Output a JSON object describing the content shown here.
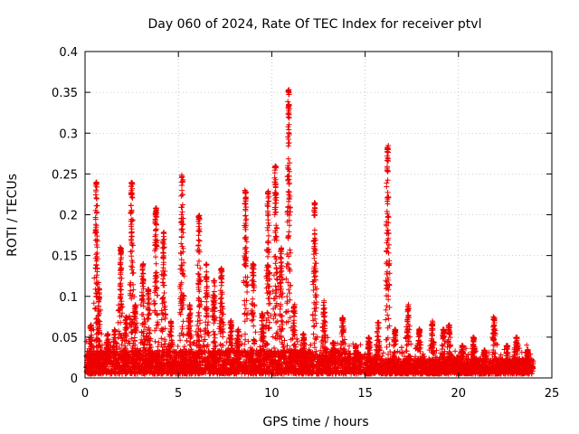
{
  "chart_data": {
    "type": "scatter",
    "title": "Day 060 of 2024, Rate Of TEC Index for receiver ptvl",
    "xlabel": "GPS time / hours",
    "ylabel": "ROTI / TECUs",
    "xlim": [
      0,
      25
    ],
    "ylim": [
      0,
      0.4
    ],
    "xticks": [
      "0",
      "5",
      "10",
      "15",
      "20",
      "25"
    ],
    "yticks": [
      "0",
      "0.05",
      "0.1",
      "0.15",
      "0.2",
      "0.25",
      "0.3",
      "0.35",
      "0.4"
    ],
    "grid": true,
    "marker": "+",
    "color": "#ee0000",
    "time_range_hours": [
      0,
      24
    ],
    "baseline_band_tecu": [
      0.005,
      0.03
    ],
    "series": [
      {
        "name": "ROTI",
        "arcs": [
          {
            "t": 0.3,
            "peak": 0.065
          },
          {
            "t": 0.6,
            "peak": 0.24
          },
          {
            "t": 0.75,
            "peak": 0.11
          },
          {
            "t": 1.2,
            "peak": 0.055
          },
          {
            "t": 1.6,
            "peak": 0.06
          },
          {
            "t": 1.9,
            "peak": 0.16
          },
          {
            "t": 2.2,
            "peak": 0.075
          },
          {
            "t": 2.5,
            "peak": 0.24
          },
          {
            "t": 2.7,
            "peak": 0.09
          },
          {
            "t": 3.1,
            "peak": 0.14
          },
          {
            "t": 3.4,
            "peak": 0.11
          },
          {
            "t": 3.8,
            "peak": 0.21
          },
          {
            "t": 4.2,
            "peak": 0.18
          },
          {
            "t": 4.6,
            "peak": 0.07
          },
          {
            "t": 5.2,
            "peak": 0.25
          },
          {
            "t": 5.6,
            "peak": 0.09
          },
          {
            "t": 6.1,
            "peak": 0.2
          },
          {
            "t": 6.5,
            "peak": 0.14
          },
          {
            "t": 6.9,
            "peak": 0.12
          },
          {
            "t": 7.3,
            "peak": 0.135
          },
          {
            "t": 7.8,
            "peak": 0.07
          },
          {
            "t": 8.2,
            "peak": 0.06
          },
          {
            "t": 8.6,
            "peak": 0.23
          },
          {
            "t": 9.0,
            "peak": 0.14
          },
          {
            "t": 9.5,
            "peak": 0.08
          },
          {
            "t": 9.8,
            "peak": 0.23
          },
          {
            "t": 10.2,
            "peak": 0.26
          },
          {
            "t": 10.5,
            "peak": 0.16
          },
          {
            "t": 10.9,
            "peak": 0.355
          },
          {
            "t": 11.2,
            "peak": 0.09
          },
          {
            "t": 11.7,
            "peak": 0.055
          },
          {
            "t": 12.3,
            "peak": 0.215
          },
          {
            "t": 12.8,
            "peak": 0.095
          },
          {
            "t": 13.3,
            "peak": 0.045
          },
          {
            "t": 13.8,
            "peak": 0.075
          },
          {
            "t": 14.5,
            "peak": 0.04
          },
          {
            "t": 15.2,
            "peak": 0.05
          },
          {
            "t": 15.7,
            "peak": 0.07
          },
          {
            "t": 16.2,
            "peak": 0.285
          },
          {
            "t": 16.6,
            "peak": 0.06
          },
          {
            "t": 17.3,
            "peak": 0.09
          },
          {
            "t": 17.9,
            "peak": 0.06
          },
          {
            "t": 18.6,
            "peak": 0.07
          },
          {
            "t": 19.2,
            "peak": 0.06
          },
          {
            "t": 19.5,
            "peak": 0.065
          },
          {
            "t": 20.2,
            "peak": 0.04
          },
          {
            "t": 20.8,
            "peak": 0.05
          },
          {
            "t": 21.4,
            "peak": 0.035
          },
          {
            "t": 21.9,
            "peak": 0.075
          },
          {
            "t": 22.6,
            "peak": 0.04
          },
          {
            "t": 23.1,
            "peak": 0.05
          },
          {
            "t": 23.7,
            "peak": 0.035
          }
        ]
      }
    ]
  }
}
